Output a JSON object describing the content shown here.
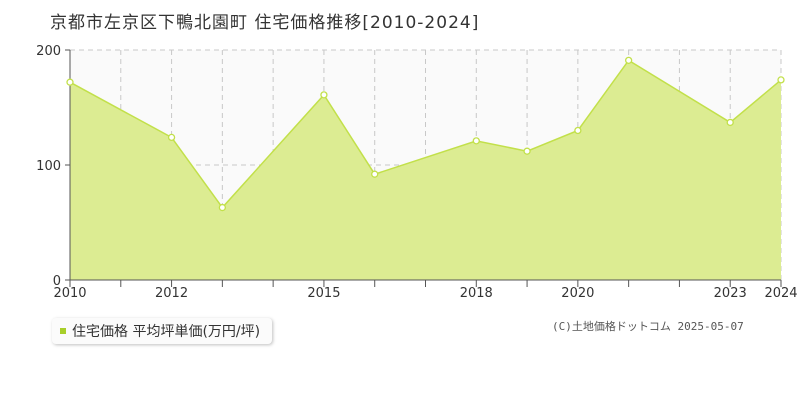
{
  "title": "京都市左京区下鴨北園町 住宅価格推移[2010-2024]",
  "legend": {
    "label": "住宅価格 平均坪単価(万円/坪)"
  },
  "copyright": "(C)土地価格ドットコム 2025-05-07",
  "colors": {
    "fill": "#dcec92",
    "line": "#c2e04a",
    "marker": "#c2e04a",
    "legend": "#a8cf2a"
  },
  "chart_data": {
    "type": "area",
    "title": "京都市左京区下鴨北園町 住宅価格推移[2010-2024]",
    "xlabel": "",
    "ylabel": "",
    "ylim": [
      0,
      200
    ],
    "yticks": [
      0,
      100,
      200
    ],
    "xlim": [
      2010,
      2024
    ],
    "xtick_labels": [
      "2010",
      "2012",
      "2015",
      "2018",
      "2020",
      "2023",
      "2024"
    ],
    "grid": true,
    "legend_position": "bottom-left",
    "series": [
      {
        "name": "住宅価格 平均坪単価(万円/坪)",
        "x": [
          2010,
          2012,
          2013,
          2015,
          2016,
          2018,
          2019,
          2020,
          2021,
          2023,
          2024
        ],
        "values": [
          172,
          124,
          63,
          161,
          92,
          121,
          112,
          130,
          191,
          137,
          174
        ]
      }
    ]
  }
}
